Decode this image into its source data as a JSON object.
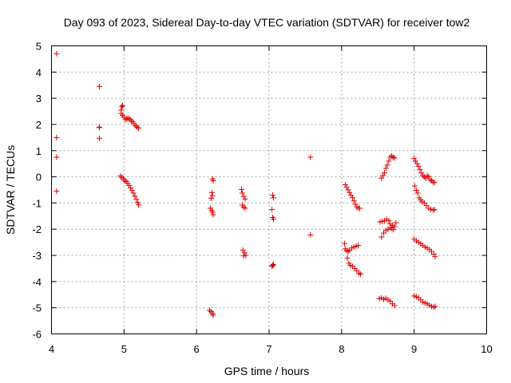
{
  "chart_data": {
    "type": "scatter",
    "title": "Day 093 of 2023, Sidereal Day-to-day VTEC variation (SDTVAR) for receiver tow2",
    "xlabel": "GPS time / hours",
    "ylabel": "SDTVAR / TECUs",
    "xlim": [
      4,
      10
    ],
    "ylim": [
      -6,
      5
    ],
    "xticks": [
      "4",
      "5",
      "6",
      "7",
      "8",
      "9",
      "10"
    ],
    "yticks": [
      "-6",
      "-5",
      "-4",
      "-3",
      "-2",
      "-1",
      "0",
      "1",
      "2",
      "3",
      "4",
      "5"
    ],
    "grid": true,
    "marker": "+",
    "color": "#e00000",
    "points": [
      [
        4.07,
        4.7
      ],
      [
        4.07,
        1.5
      ],
      [
        4.07,
        0.75
      ],
      [
        4.07,
        -0.55
      ],
      [
        4.66,
        3.45
      ],
      [
        4.66,
        1.88
      ],
      [
        4.66,
        1.9
      ],
      [
        4.66,
        1.47
      ],
      [
        4.96,
        2.55
      ],
      [
        4.97,
        2.68
      ],
      [
        4.98,
        2.72
      ],
      [
        4.96,
        2.42
      ],
      [
        4.98,
        2.35
      ],
      [
        5.0,
        2.28
      ],
      [
        5.02,
        2.18
      ],
      [
        5.04,
        2.22
      ],
      [
        5.06,
        2.24
      ],
      [
        5.08,
        2.2
      ],
      [
        5.1,
        2.14
      ],
      [
        5.12,
        2.1
      ],
      [
        5.14,
        2.02
      ],
      [
        5.16,
        1.95
      ],
      [
        5.18,
        1.9
      ],
      [
        5.2,
        1.86
      ],
      [
        4.95,
        0.03
      ],
      [
        4.97,
        -0.02
      ],
      [
        4.99,
        -0.08
      ],
      [
        5.01,
        -0.14
      ],
      [
        5.03,
        -0.18
      ],
      [
        5.05,
        -0.25
      ],
      [
        5.07,
        -0.33
      ],
      [
        5.09,
        -0.42
      ],
      [
        5.11,
        -0.52
      ],
      [
        5.13,
        -0.62
      ],
      [
        5.15,
        -0.74
      ],
      [
        5.17,
        -0.86
      ],
      [
        5.19,
        -0.98
      ],
      [
        5.2,
        -1.07
      ],
      [
        6.22,
        -0.08
      ],
      [
        6.23,
        -0.15
      ],
      [
        6.21,
        -0.6
      ],
      [
        6.22,
        -0.72
      ],
      [
        6.2,
        -0.82
      ],
      [
        6.19,
        -1.2
      ],
      [
        6.21,
        -1.28
      ],
      [
        6.22,
        -1.35
      ],
      [
        6.23,
        -1.45
      ],
      [
        6.18,
        -5.1
      ],
      [
        6.2,
        -5.15
      ],
      [
        6.22,
        -5.22
      ],
      [
        6.23,
        -5.28
      ],
      [
        6.62,
        -0.48
      ],
      [
        6.63,
        -0.62
      ],
      [
        6.65,
        -0.75
      ],
      [
        6.67,
        -0.85
      ],
      [
        6.63,
        -1.08
      ],
      [
        6.65,
        -1.15
      ],
      [
        6.67,
        -1.2
      ],
      [
        6.64,
        -2.8
      ],
      [
        6.66,
        -2.9
      ],
      [
        6.68,
        -3.0
      ],
      [
        6.65,
        -3.02
      ],
      [
        7.05,
        -0.7
      ],
      [
        7.06,
        -0.8
      ],
      [
        7.04,
        -1.25
      ],
      [
        7.05,
        -1.55
      ],
      [
        7.06,
        -1.62
      ],
      [
        7.04,
        -3.42
      ],
      [
        7.05,
        -3.38
      ],
      [
        7.06,
        -3.35
      ],
      [
        7.57,
        0.75
      ],
      [
        7.57,
        -2.22
      ],
      [
        8.05,
        -0.3
      ],
      [
        8.07,
        -0.4
      ],
      [
        8.09,
        -0.5
      ],
      [
        8.11,
        -0.6
      ],
      [
        8.13,
        -0.7
      ],
      [
        8.15,
        -0.8
      ],
      [
        8.17,
        -0.92
      ],
      [
        8.19,
        -1.05
      ],
      [
        8.21,
        -1.15
      ],
      [
        8.23,
        -1.2
      ],
      [
        8.25,
        -1.2
      ],
      [
        8.04,
        -2.55
      ],
      [
        8.05,
        -2.75
      ],
      [
        8.07,
        -2.82
      ],
      [
        8.09,
        -2.85
      ],
      [
        8.11,
        -2.8
      ],
      [
        8.14,
        -2.72
      ],
      [
        8.17,
        -2.68
      ],
      [
        8.2,
        -2.65
      ],
      [
        8.23,
        -2.62
      ],
      [
        8.08,
        -3.1
      ],
      [
        8.1,
        -3.3
      ],
      [
        8.12,
        -3.38
      ],
      [
        8.15,
        -3.42
      ],
      [
        8.18,
        -3.5
      ],
      [
        8.21,
        -3.58
      ],
      [
        8.24,
        -3.68
      ],
      [
        8.26,
        -3.72
      ],
      [
        8.55,
        -0.05
      ],
      [
        8.57,
        0.05
      ],
      [
        8.59,
        0.15
      ],
      [
        8.61,
        0.32
      ],
      [
        8.63,
        0.45
      ],
      [
        8.65,
        0.6
      ],
      [
        8.67,
        0.75
      ],
      [
        8.69,
        0.8
      ],
      [
        8.71,
        0.75
      ],
      [
        8.73,
        0.72
      ],
      [
        8.53,
        -1.72
      ],
      [
        8.56,
        -1.7
      ],
      [
        8.59,
        -1.68
      ],
      [
        8.62,
        -1.62
      ],
      [
        8.65,
        -1.68
      ],
      [
        8.67,
        -1.8
      ],
      [
        8.69,
        -1.95
      ],
      [
        8.71,
        -2.02
      ],
      [
        8.73,
        -1.9
      ],
      [
        8.75,
        -1.75
      ],
      [
        8.55,
        -2.3
      ],
      [
        8.58,
        -2.15
      ],
      [
        8.61,
        -2.05
      ],
      [
        8.64,
        -2.0
      ],
      [
        8.67,
        -1.95
      ],
      [
        8.7,
        -1.85
      ],
      [
        8.52,
        -4.65
      ],
      [
        8.55,
        -4.62
      ],
      [
        8.58,
        -4.68
      ],
      [
        8.61,
        -4.64
      ],
      [
        8.64,
        -4.7
      ],
      [
        8.67,
        -4.75
      ],
      [
        8.7,
        -4.85
      ],
      [
        8.73,
        -4.92
      ],
      [
        9.0,
        0.7
      ],
      [
        9.02,
        0.6
      ],
      [
        9.04,
        0.5
      ],
      [
        9.06,
        0.4
      ],
      [
        9.08,
        0.28
      ],
      [
        9.1,
        0.15
      ],
      [
        9.12,
        0.05
      ],
      [
        9.14,
        0.0
      ],
      [
        9.16,
        -0.05
      ],
      [
        9.18,
        0.05
      ],
      [
        9.2,
        0.0
      ],
      [
        9.22,
        -0.1
      ],
      [
        9.24,
        -0.15
      ],
      [
        9.26,
        -0.2
      ],
      [
        9.28,
        -0.22
      ],
      [
        9.01,
        -0.35
      ],
      [
        9.03,
        -0.52
      ],
      [
        9.05,
        -0.62
      ],
      [
        9.07,
        -0.8
      ],
      [
        9.09,
        -0.88
      ],
      [
        9.11,
        -0.95
      ],
      [
        9.14,
        -1.0
      ],
      [
        9.17,
        -1.1
      ],
      [
        9.2,
        -1.2
      ],
      [
        9.23,
        -1.25
      ],
      [
        9.26,
        -1.27
      ],
      [
        9.28,
        -1.25
      ],
      [
        9.0,
        -2.38
      ],
      [
        9.03,
        -2.45
      ],
      [
        9.06,
        -2.5
      ],
      [
        9.09,
        -2.55
      ],
      [
        9.12,
        -2.62
      ],
      [
        9.15,
        -2.68
      ],
      [
        9.18,
        -2.72
      ],
      [
        9.21,
        -2.78
      ],
      [
        9.24,
        -2.85
      ],
      [
        9.27,
        -2.95
      ],
      [
        9.29,
        -3.05
      ],
      [
        9.0,
        -4.55
      ],
      [
        9.03,
        -4.58
      ],
      [
        9.06,
        -4.62
      ],
      [
        9.09,
        -4.7
      ],
      [
        9.12,
        -4.78
      ],
      [
        9.15,
        -4.82
      ],
      [
        9.18,
        -4.85
      ],
      [
        9.21,
        -4.9
      ],
      [
        9.24,
        -4.95
      ],
      [
        9.27,
        -4.98
      ],
      [
        9.29,
        -4.95
      ]
    ]
  }
}
